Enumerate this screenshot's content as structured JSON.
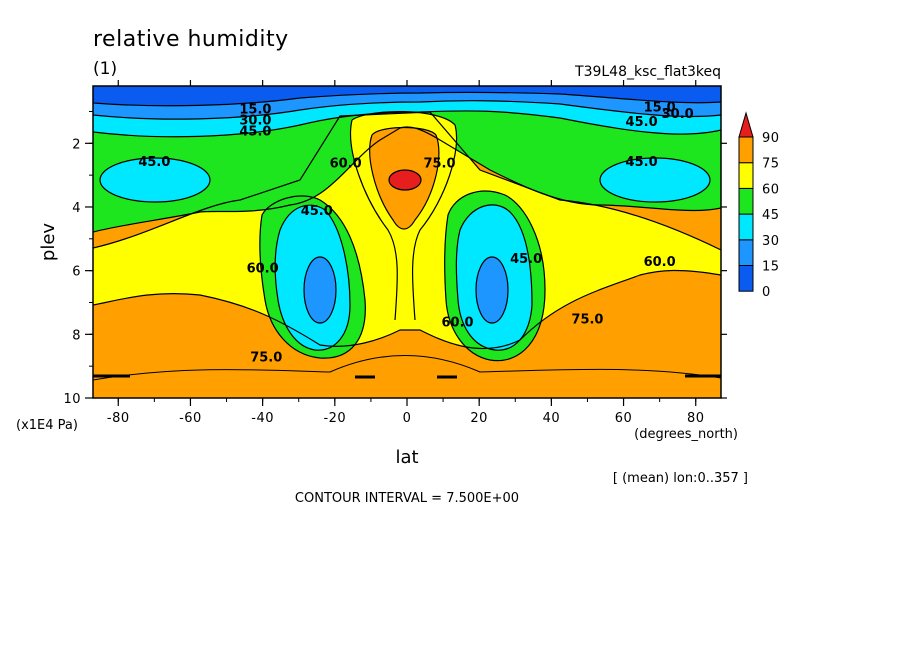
{
  "title": "relative humidity",
  "subtitle": "(1)",
  "experiment": "T39L48_ksc_flat3keq",
  "xaxis": {
    "label": "lat",
    "unit": "(degrees_north)"
  },
  "yaxis": {
    "label": "plev",
    "unit": "(x1E4 Pa)"
  },
  "averaging_note": "[ (mean) lon:0..357 ]",
  "contour_interval": "CONTOUR INTERVAL = 7.500E+00",
  "colors": {
    "band_0_15": "#0a5cf0",
    "band_15_30": "#1e96ff",
    "band_30_45": "#00e8ff",
    "band_45_60": "#1ee61e",
    "band_60_75": "#ffff00",
    "band_75_90": "#ffa000",
    "band_90_up": "#e61e1e"
  },
  "chart_data": {
    "type": "heatmap",
    "title": "relative humidity",
    "subtitle": "(1)",
    "xlabel": "lat",
    "ylabel": "plev",
    "xlim": [
      -87,
      87
    ],
    "ylim": [
      10,
      0.2
    ],
    "yaxis_reversed": true,
    "x_ticks": [
      -80,
      -60,
      -40,
      -20,
      0,
      20,
      40,
      60,
      80
    ],
    "x_tick_labels": [
      "-80",
      "-60",
      "-40",
      "-20",
      "0",
      "20",
      "40",
      "60",
      "80"
    ],
    "y_ticks": [
      2,
      4,
      6,
      8,
      10
    ],
    "y_tick_labels": [
      "2",
      "4",
      "6",
      "8",
      "10"
    ],
    "contour_interval": 7.5,
    "colorbar": {
      "levels": [
        0,
        15,
        30,
        45,
        60,
        75,
        90
      ],
      "labels": [
        "0",
        "15",
        "30",
        "45",
        "60",
        "75",
        "90"
      ],
      "colors": [
        "#0a5cf0",
        "#1e96ff",
        "#00e8ff",
        "#1ee61e",
        "#ffff00",
        "#ffa000",
        "#e61e1e"
      ],
      "extend": "max"
    },
    "contour_labels": [
      {
        "text": "15.0",
        "lat": -42,
        "plev": 0.9
      },
      {
        "text": "30.0",
        "lat": -42,
        "plev": 1.25
      },
      {
        "text": "45.0",
        "lat": -42,
        "plev": 1.6
      },
      {
        "text": "45.0",
        "lat": -70,
        "plev": 2.55
      },
      {
        "text": "60.0",
        "lat": -17,
        "plev": 2.6
      },
      {
        "text": "75.0",
        "lat": 9,
        "plev": 2.6
      },
      {
        "text": "45.0",
        "lat": -25,
        "plev": 4.1
      },
      {
        "text": "60.0",
        "lat": -40,
        "plev": 5.9
      },
      {
        "text": "45.0",
        "lat": 33,
        "plev": 5.6
      },
      {
        "text": "60.0",
        "lat": 70,
        "plev": 5.7
      },
      {
        "text": "60.0",
        "lat": 14,
        "plev": 7.6
      },
      {
        "text": "75.0",
        "lat": 50,
        "plev": 7.5
      },
      {
        "text": "75.0",
        "lat": -39,
        "plev": 8.7
      },
      {
        "text": "15.0",
        "lat": 70,
        "plev": 0.85
      },
      {
        "text": "30.0",
        "lat": 75,
        "plev": 1.05
      },
      {
        "text": "45.0",
        "lat": 65,
        "plev": 1.3
      },
      {
        "text": "45.0",
        "lat": 65,
        "plev": 2.55
      }
    ]
  }
}
